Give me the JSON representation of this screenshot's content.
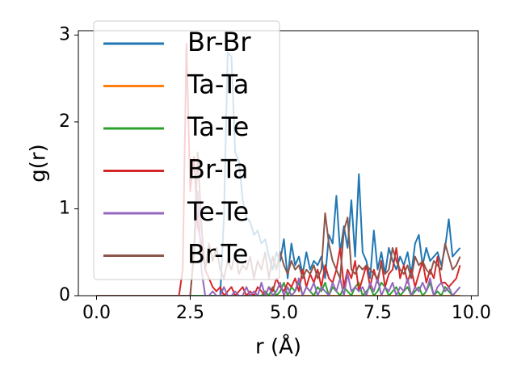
{
  "chart_data": {
    "type": "line",
    "x_label": "r (Å)",
    "y_label": "g(r)",
    "x": [
      0,
      0.1,
      0.2,
      0.3,
      0.4,
      0.5,
      0.6,
      0.7,
      0.8,
      0.9,
      1,
      1.1,
      1.2,
      1.3,
      1.4,
      1.5,
      1.6,
      1.7,
      1.8,
      1.9,
      2,
      2.1,
      2.2,
      2.3,
      2.4,
      2.5,
      2.6,
      2.7,
      2.8,
      2.9,
      3,
      3.1,
      3.2,
      3.3,
      3.4,
      3.5,
      3.6,
      3.7,
      3.8,
      3.9,
      4,
      4.1,
      4.2,
      4.3,
      4.4,
      4.5,
      4.6,
      4.7,
      4.8,
      4.9,
      5,
      5.1,
      5.2,
      5.3,
      5.4,
      5.5,
      5.6,
      5.7,
      5.8,
      5.9,
      6,
      6.1,
      6.2,
      6.3,
      6.4,
      6.5,
      6.6,
      6.7,
      6.8,
      6.9,
      7,
      7.1,
      7.2,
      7.3,
      7.4,
      7.5,
      7.6,
      7.7,
      7.8,
      7.9,
      8,
      8.1,
      8.2,
      8.3,
      8.4,
      8.5,
      8.6,
      8.7,
      8.8,
      8.9,
      9,
      9.1,
      9.2,
      9.3,
      9.4,
      9.5,
      9.6,
      9.7
    ],
    "series": [
      {
        "name": "Br-Br",
        "color": "#1f77b4",
        "values": [
          0,
          0,
          0,
          0,
          0,
          0,
          0,
          0,
          0,
          0,
          0,
          0,
          0,
          0,
          0,
          0,
          0,
          0,
          0,
          0,
          0,
          0,
          0,
          0,
          0,
          0,
          0,
          0,
          0,
          0,
          0,
          0,
          0,
          0,
          0.9,
          2.8,
          2.75,
          1.65,
          1.55,
          1.1,
          0.9,
          0.85,
          0.7,
          0.75,
          0.6,
          0.65,
          0.45,
          0.3,
          0.5,
          0.4,
          0.65,
          0.2,
          0.6,
          0.35,
          0.45,
          0.25,
          0.5,
          0.3,
          0.4,
          0.35,
          0.45,
          0.2,
          0.7,
          0.6,
          1.15,
          0.5,
          0.8,
          0.55,
          1.1,
          0.45,
          1.4,
          0.5,
          0.4,
          0.2,
          0.75,
          0.3,
          0.5,
          0.25,
          0.55,
          0.4,
          0.3,
          0.45,
          0.35,
          0.5,
          0.25,
          0.6,
          0.7,
          0.35,
          0.55,
          0.4,
          0.45,
          0.5,
          0.35,
          0.55,
          0.88,
          0.45,
          0.5,
          0.55
        ]
      },
      {
        "name": "Ta-Ta",
        "color": "#ff7f0e",
        "values": [
          0,
          0,
          0,
          0,
          0,
          0,
          0,
          0,
          0,
          0,
          0,
          0,
          0,
          0,
          0,
          0,
          0,
          0,
          0,
          0,
          0,
          0,
          0,
          0,
          0,
          0,
          0,
          0,
          0,
          0,
          0,
          0,
          0,
          0,
          0,
          0,
          0,
          0,
          0,
          0,
          0,
          0,
          0,
          0,
          0,
          0,
          0,
          0,
          0,
          0,
          0,
          0,
          0,
          0,
          0,
          0,
          0,
          0,
          0,
          0,
          0,
          0,
          0,
          0,
          0,
          0,
          0,
          0,
          0,
          0,
          0,
          0,
          0,
          0,
          0,
          0,
          0,
          0,
          0,
          0,
          0,
          0,
          0,
          0,
          0,
          0,
          0,
          0,
          0,
          0,
          0,
          0,
          0,
          0,
          0,
          0,
          0,
          0
        ]
      },
      {
        "name": "Ta-Te",
        "color": "#2ca02c",
        "values": [
          0,
          0,
          0,
          0,
          0,
          0,
          0,
          0,
          0,
          0,
          0,
          0,
          0,
          0,
          0,
          0,
          0,
          0,
          0,
          0,
          0,
          0,
          0,
          0,
          0,
          0,
          0,
          0,
          0,
          0,
          0,
          0,
          0,
          0,
          0,
          0,
          0,
          0,
          0,
          0,
          0,
          0,
          0,
          0,
          0,
          0.05,
          0,
          0.1,
          0,
          0.05,
          0.15,
          0,
          0.1,
          0.05,
          0.15,
          0,
          0.1,
          0.05,
          0,
          0.1,
          0.05,
          0.15,
          0,
          0.1,
          0.05,
          0,
          0.1,
          0.05,
          0,
          0.1,
          0.15,
          0,
          0.05,
          0.1,
          0,
          0.05,
          0.15,
          0.1,
          0,
          0.05,
          0.1,
          0,
          0.05,
          0.1,
          0,
          0.05,
          0.1,
          0,
          0.05,
          0.15,
          0,
          0.05,
          0,
          0.1,
          0.05,
          0,
          0.05,
          0.1
        ]
      },
      {
        "name": "Br-Ta",
        "color": "#d62728",
        "values": [
          0,
          0,
          0,
          0,
          0,
          0,
          0,
          0,
          0,
          0,
          0,
          0,
          0,
          0,
          0,
          0,
          0,
          0,
          0,
          0,
          0,
          0,
          0,
          0.3,
          2.9,
          1.2,
          1.6,
          0.8,
          0.6,
          0.3,
          0.2,
          0.1,
          0.05,
          0.1,
          0,
          0.05,
          0.1,
          0,
          0.05,
          0.1,
          0,
          0.05,
          0,
          0.1,
          0.05,
          0,
          0.1,
          0.05,
          0.2,
          0.1,
          0.05,
          0.15,
          0.1,
          0.2,
          0.05,
          0.3,
          0.1,
          0.25,
          0.15,
          0.3,
          0.1,
          0.35,
          0.2,
          0.15,
          0.3,
          0.55,
          0.1,
          0.3,
          0.2,
          0.4,
          0.05,
          0.2,
          0.35,
          0.1,
          0.3,
          0.15,
          0.4,
          0.1,
          0.25,
          0.3,
          0.55,
          0.2,
          0.35,
          0.15,
          0.3,
          0.1,
          0.25,
          0.4,
          0.15,
          0.3,
          0.2,
          0.45,
          0.15,
          0.15,
          0.1,
          0.15,
          0.2,
          0.35
        ]
      },
      {
        "name": "Te-Te",
        "color": "#9467bd",
        "values": [
          0,
          0,
          0,
          0,
          0,
          0,
          0,
          0,
          0,
          0,
          0,
          0,
          0,
          0,
          0,
          0,
          0,
          0,
          0,
          0,
          0,
          0,
          0,
          0,
          0,
          0,
          0.5,
          1.2,
          0.3,
          0,
          0,
          0.05,
          0,
          0,
          0.1,
          0,
          0,
          0.05,
          0,
          0,
          0.1,
          0,
          0.05,
          0,
          0.15,
          0,
          0.1,
          0,
          0.05,
          0.15,
          0,
          0.1,
          0,
          0.05,
          0.2,
          0,
          0.1,
          0.05,
          0.15,
          0,
          0.1,
          0.05,
          0,
          0.15,
          0.05,
          0.2,
          0,
          0.25,
          0.05,
          0.1,
          0.05,
          0.1,
          0,
          0.15,
          0.05,
          0.2,
          0,
          0.1,
          0.05,
          0.15,
          0,
          0.1,
          0.05,
          0.2,
          0,
          0.1,
          0.05,
          0.15,
          0.05,
          0.2,
          0,
          0.1,
          0.15,
          0.05,
          0.1,
          0,
          0.05,
          0.1
        ]
      },
      {
        "name": "Br-Te",
        "color": "#8c564b",
        "values": [
          0,
          0,
          0,
          0,
          0,
          0,
          0,
          0,
          0,
          0,
          0,
          0,
          0,
          0,
          0,
          0,
          0,
          0,
          0,
          0,
          0,
          0,
          0,
          0,
          0,
          0,
          0.5,
          1.65,
          0.8,
          0.3,
          0.6,
          0.4,
          0.55,
          0.3,
          0.2,
          0.4,
          0.3,
          0.5,
          0.25,
          0.35,
          0.3,
          0.45,
          0.2,
          0.4,
          0.3,
          0.5,
          0.2,
          0.45,
          0.3,
          0.5,
          0.35,
          0.25,
          0.4,
          0.3,
          0.35,
          0.2,
          0.3,
          0.25,
          0.35,
          0.2,
          0.3,
          0.95,
          0.6,
          0.4,
          0.3,
          0.2,
          0.75,
          0.9,
          0.3,
          0.25,
          0.35,
          0.3,
          0.35,
          0.3,
          0.25,
          0.2,
          0.35,
          0.25,
          0.3,
          0.55,
          0.4,
          0.3,
          0.25,
          0.35,
          0.2,
          0.45,
          0.35,
          0.4,
          0.3,
          0.25,
          0.4,
          0.35,
          0.3,
          0.6,
          0.45,
          0.3,
          0.35,
          0.45
        ]
      }
    ],
    "xlim": [
      -0.485,
      10.185
    ],
    "xticks": [
      {
        "value": 0,
        "label": "0.0"
      },
      {
        "value": 2.5,
        "label": "2.5"
      },
      {
        "value": 5,
        "label": "5.0"
      },
      {
        "value": 7.5,
        "label": "7.5"
      },
      {
        "value": 10,
        "label": "10.0"
      }
    ],
    "ylim": [
      0,
      3.05
    ],
    "yticks": [
      0,
      1,
      2,
      3
    ],
    "legend": "upper left"
  }
}
